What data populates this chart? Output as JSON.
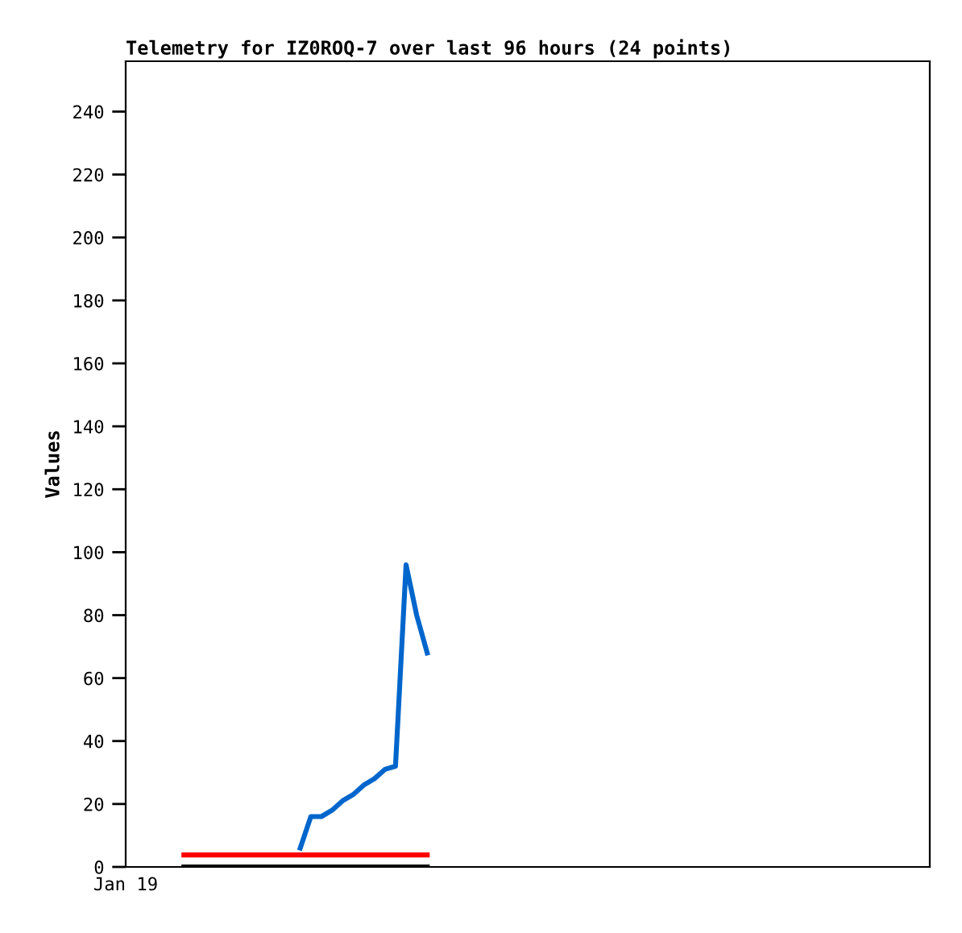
{
  "chart_data": {
    "type": "line",
    "title": "Telemetry for IZ0ROQ-7 over last 96 hours (24 points)",
    "ylabel": "Values",
    "annotations": [
      "Jan 19"
    ],
    "categories": [
      null,
      null,
      null,
      null,
      null,
      null,
      null,
      null,
      null,
      null,
      null,
      null,
      null,
      null,
      null,
      null,
      null,
      null,
      null,
      null,
      null,
      null,
      null,
      null,
      null,
      null,
      null,
      null,
      null,
      null,
      null,
      null,
      null,
      null,
      null,
      null,
      null,
      null,
      null,
      null,
      null,
      null,
      null,
      null,
      null,
      null,
      null,
      null,
      null,
      null,
      null,
      null,
      null,
      null,
      null,
      null,
      null,
      null,
      null,
      null,
      null,
      null,
      null,
      null,
      null,
      null,
      null,
      null,
      null,
      null,
      null,
      null,
      null,
      null,
      null,
      null
    ],
    "ylim": [
      0,
      256
    ],
    "yticks": [
      0,
      20,
      40,
      60,
      80,
      100,
      120,
      140,
      160,
      180,
      200,
      220,
      240
    ],
    "marker": "none",
    "line_style": "solid",
    "series": [
      {
        "color": "#ff0000",
        "values": [
          null,
          null,
          null,
          null,
          null,
          3.8,
          3.8,
          3.8,
          3.8,
          3.8,
          3.8,
          3.8,
          3.8,
          3.8,
          3.8,
          3.8,
          3.8,
          3.8,
          3.8,
          3.8,
          3.8,
          3.8,
          3.8,
          3.8,
          3.8,
          3.8,
          3.8,
          3.8,
          3.8,
          null,
          null,
          null,
          null,
          null,
          null,
          null,
          null,
          null,
          null,
          null,
          null,
          null,
          null,
          null,
          null,
          null,
          null,
          null,
          null,
          null,
          null,
          null,
          null,
          null,
          null,
          null,
          null,
          null,
          null,
          null,
          null,
          null,
          null,
          null,
          null,
          null,
          null,
          null,
          null,
          null,
          null,
          null,
          null,
          null,
          null,
          null
        ]
      },
      {
        "color": "#000000",
        "values": [
          null,
          null,
          null,
          null,
          null,
          0,
          0,
          0,
          0,
          0,
          0,
          0,
          0,
          0,
          0,
          0,
          0,
          0,
          0,
          0,
          0,
          0,
          0,
          0,
          0,
          0,
          0,
          0,
          0,
          null,
          null,
          null,
          null,
          null,
          null,
          null,
          null,
          null,
          null,
          null,
          null,
          null,
          null,
          null,
          null,
          null,
          null,
          null,
          null,
          null,
          null,
          null,
          null,
          null,
          null,
          null,
          null,
          null,
          null,
          null,
          null,
          null,
          null,
          null,
          null,
          null,
          null,
          null,
          null,
          null,
          null,
          null,
          null,
          null,
          null,
          null
        ]
      },
      {
        "color": "#0066cc",
        "values": [
          null,
          null,
          null,
          null,
          null,
          null,
          null,
          null,
          null,
          null,
          null,
          null,
          null,
          null,
          null,
          null,
          6,
          16,
          16,
          18,
          21,
          23,
          26,
          28,
          31,
          32,
          96,
          80,
          68,
          null,
          null,
          null,
          null,
          null,
          null,
          null,
          null,
          null,
          null,
          null,
          null,
          null,
          null,
          null,
          null,
          null,
          null,
          null,
          null,
          null,
          null,
          null,
          null,
          null,
          null,
          null,
          null,
          null,
          null,
          null,
          null,
          null,
          null,
          null,
          null,
          null,
          null,
          null,
          null,
          null,
          null,
          null,
          null,
          null,
          null,
          null
        ]
      }
    ]
  }
}
